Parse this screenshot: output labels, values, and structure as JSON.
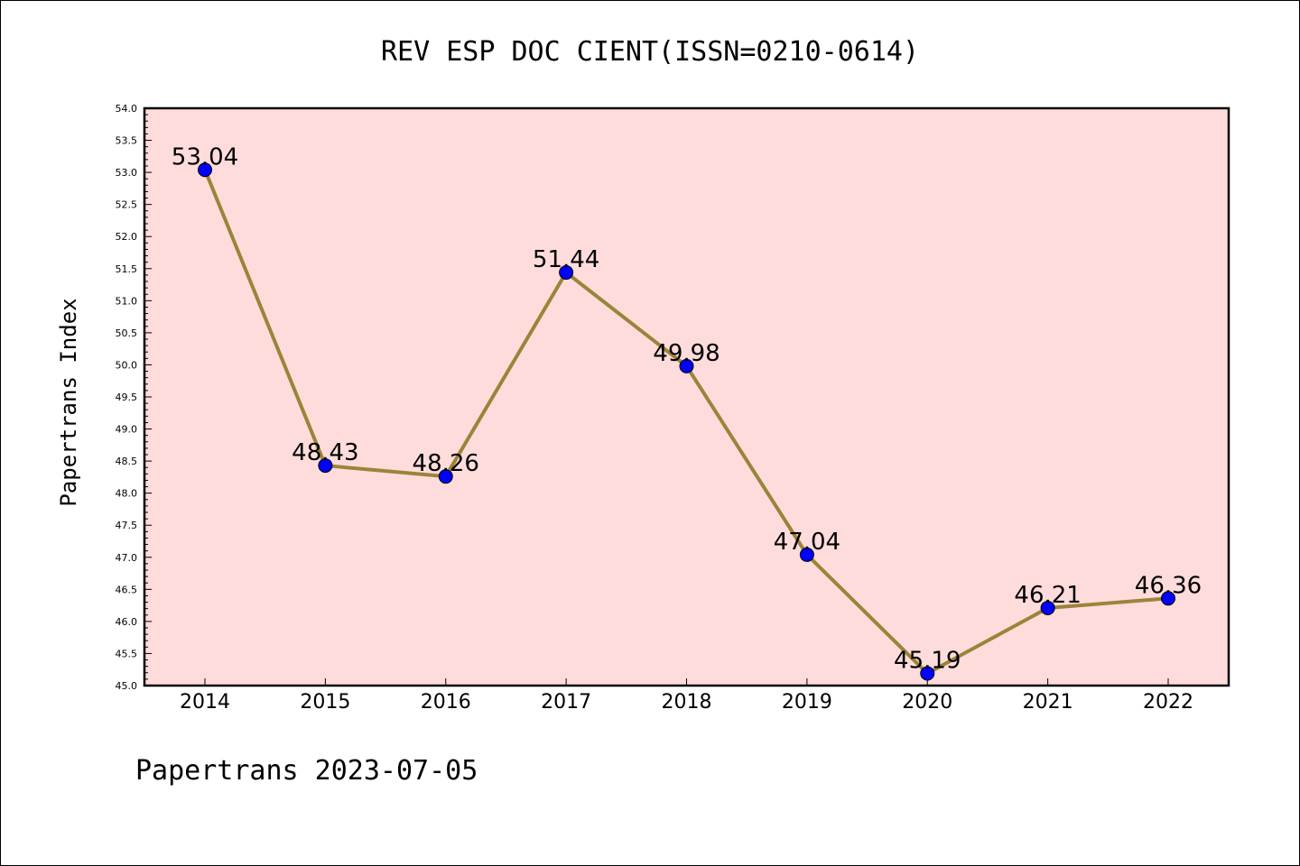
{
  "chart_data": {
    "type": "line",
    "title": "REV ESP DOC CIENT(ISSN=0210-0614)",
    "ylabel": "Papertrans Index",
    "xlabel": "",
    "footer": "Papertrans 2023-07-05",
    "categories": [
      "2014",
      "2015",
      "2016",
      "2017",
      "2018",
      "2019",
      "2020",
      "2021",
      "2022"
    ],
    "values": [
      53.04,
      48.43,
      48.26,
      51.44,
      49.98,
      47.04,
      45.19,
      46.21,
      46.36
    ],
    "data_labels": [
      "53.04",
      "48.43",
      "48.26",
      "51.44",
      "49.98",
      "47.04",
      "45.19",
      "46.21",
      "46.36"
    ],
    "ylim": [
      45.0,
      54.0
    ],
    "yticks": [
      "45.0",
      "45.5",
      "46.0",
      "46.5",
      "47.0",
      "47.5",
      "48.0",
      "48.5",
      "49.0",
      "49.5",
      "50.0",
      "50.5",
      "51.0",
      "51.5",
      "52.0",
      "52.5",
      "53.0",
      "53.5",
      "54.0"
    ],
    "grid": false,
    "colors": {
      "plot_background": "#ffdcdc",
      "line": "#9b8439",
      "marker": "#0000ff"
    }
  }
}
